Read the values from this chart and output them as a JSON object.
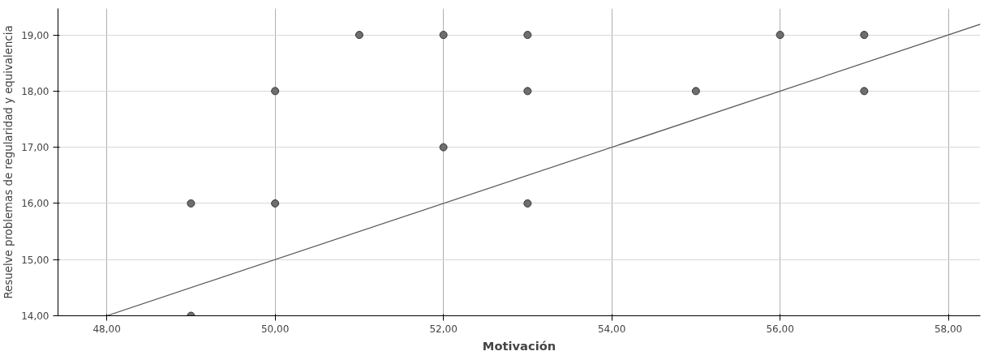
{
  "chart_data": {
    "type": "scatter",
    "xlabel": "Motivación",
    "ylabel": "Resuelve problemas de regularidad y equivalencia",
    "series": [
      {
        "color": "#6e6e6e",
        "x": [
          49,
          49,
          50,
          50,
          51,
          52,
          52,
          53,
          53,
          53,
          55,
          56,
          57,
          57
        ],
        "values": [
          16,
          14,
          18,
          16,
          19,
          19,
          17,
          19,
          18,
          16,
          18,
          19,
          19,
          18
        ]
      },
      {
        "type": "line",
        "marker": "none",
        "color": "#555555",
        "x": [
          48,
          58.38
        ],
        "values": [
          14,
          19.19
        ]
      }
    ],
    "xlim": [
      47.42,
      58.38
    ],
    "ylim": [
      14,
      19.47
    ],
    "xticks": [
      {
        "value": 48,
        "label": "48,00"
      },
      {
        "value": 50,
        "label": "50,00"
      },
      {
        "value": 52,
        "label": "52,00"
      },
      {
        "value": 54,
        "label": "54,00"
      },
      {
        "value": 56,
        "label": "56,00"
      },
      {
        "value": 58,
        "label": "58,00"
      }
    ],
    "yticks": [
      {
        "value": 14,
        "label": "14,00"
      },
      {
        "value": 15,
        "label": "15,00"
      },
      {
        "value": 16,
        "label": "16,00"
      },
      {
        "value": 17,
        "label": "17,00"
      },
      {
        "value": 18,
        "label": "18,00"
      },
      {
        "value": 19,
        "label": "19,00"
      }
    ],
    "grid": true,
    "marker": "circle",
    "line_style": "solid"
  }
}
